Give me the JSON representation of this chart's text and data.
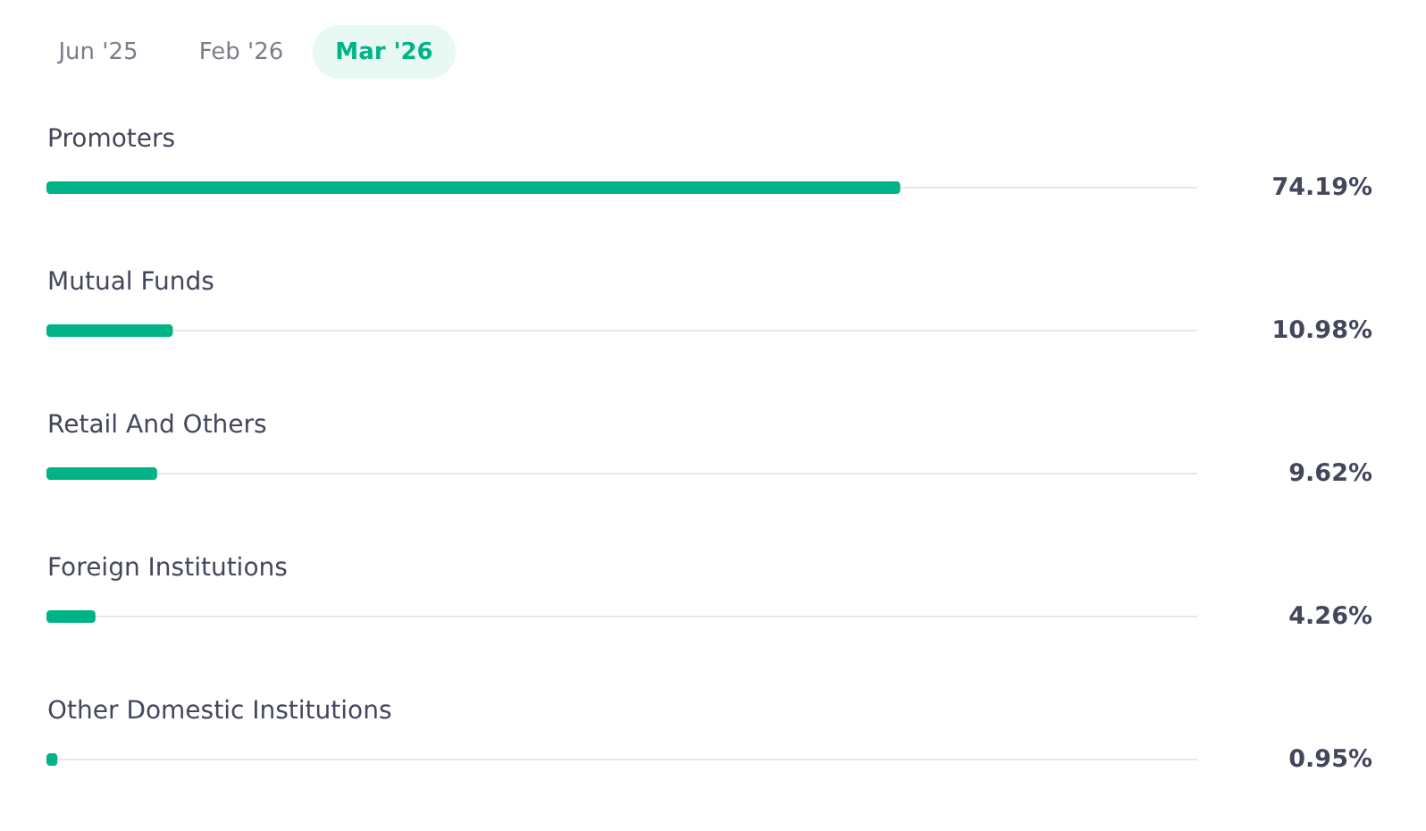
{
  "chart_data": {
    "type": "bar",
    "orientation": "horizontal",
    "annotations": [
      "Jun '25",
      "Feb '26",
      "Mar '26"
    ],
    "categories": [
      "Promoters",
      "Mutual Funds",
      "Retail And Others",
      "Foreign Institutions",
      "Other Domestic Institutions"
    ],
    "series": [
      {
        "color": "#00b386",
        "values": [
          74.19,
          10.98,
          9.62,
          4.26,
          0.95
        ],
        "value_labels": [
          "74.19%",
          "10.98%",
          "9.62%",
          "4.26%",
          "0.95%"
        ]
      }
    ],
    "xlim": [
      0,
      100
    ]
  }
}
